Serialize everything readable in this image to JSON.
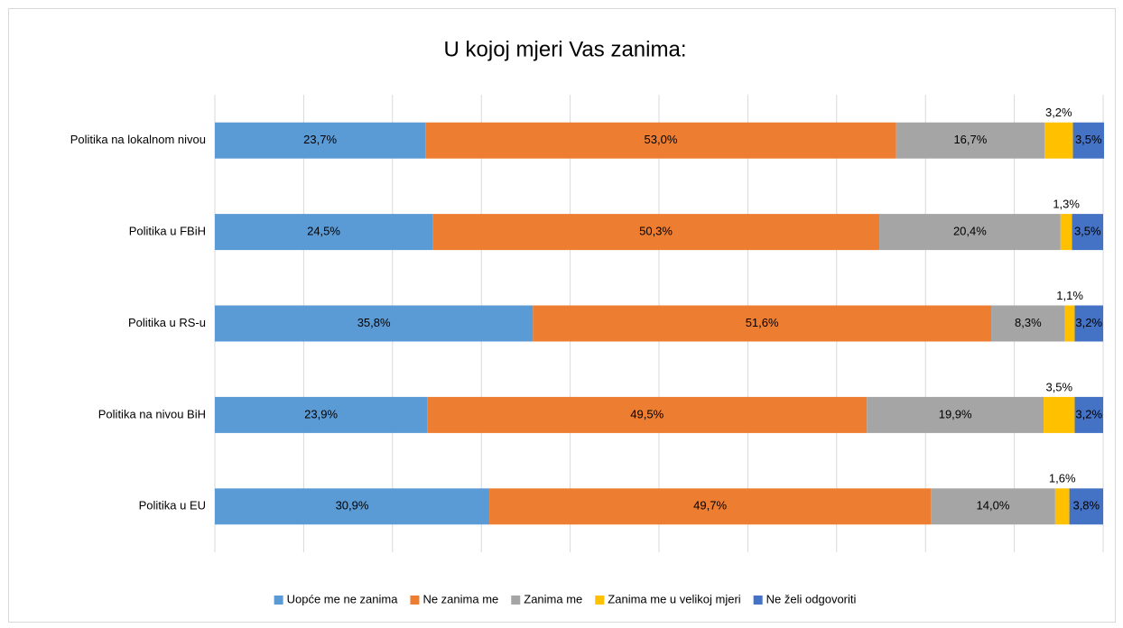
{
  "chart_data": {
    "type": "stacked_barh",
    "title": "U kojoj mjeri Vas zanima:",
    "categories": [
      "Politika na lokalnom nivou",
      "Politika u FBiH",
      "Politika u RS-u",
      "Politika na nivou BiH",
      "Politika u EU"
    ],
    "series": [
      {
        "name": "Uopće me ne zanima",
        "color": "#5b9bd5",
        "values": [
          23.7,
          24.5,
          35.8,
          23.9,
          30.9
        ],
        "value_labels": [
          "23,7%",
          "24,5%",
          "35,8%",
          "23,9%",
          "30,9%"
        ]
      },
      {
        "name": "Ne zanima me",
        "color": "#ed7d31",
        "values": [
          53.0,
          50.3,
          51.6,
          49.5,
          49.7
        ],
        "value_labels": [
          "53,0%",
          "50,3%",
          "51,6%",
          "49,5%",
          "49,7%"
        ]
      },
      {
        "name": "Zanima me",
        "color": "#a5a5a5",
        "values": [
          16.7,
          20.4,
          8.3,
          19.9,
          14.0
        ],
        "value_labels": [
          "16,7%",
          "20,4%",
          "8,3%",
          "19,9%",
          "14,0%"
        ]
      },
      {
        "name": "Zanima me u velikoj mjeri",
        "color": "#ffc000",
        "values": [
          3.2,
          1.3,
          1.1,
          3.5,
          1.6
        ],
        "value_labels": [
          "3,2%",
          "1,3%",
          "1,1%",
          "3,5%",
          "1,6%"
        ],
        "label_position": "above"
      },
      {
        "name": "Ne želi odgovoriti",
        "color": "#4472c4",
        "values": [
          3.5,
          3.5,
          3.2,
          3.2,
          3.8
        ],
        "value_labels": [
          "3,5%",
          "3,5%",
          "3,2%",
          "3,2%",
          "3,8%"
        ]
      }
    ],
    "xlim": [
      0,
      100
    ],
    "xticks": [
      0,
      10,
      20,
      30,
      40,
      50,
      60,
      70,
      80,
      90,
      100
    ],
    "grid": true,
    "legend": "bottom"
  }
}
